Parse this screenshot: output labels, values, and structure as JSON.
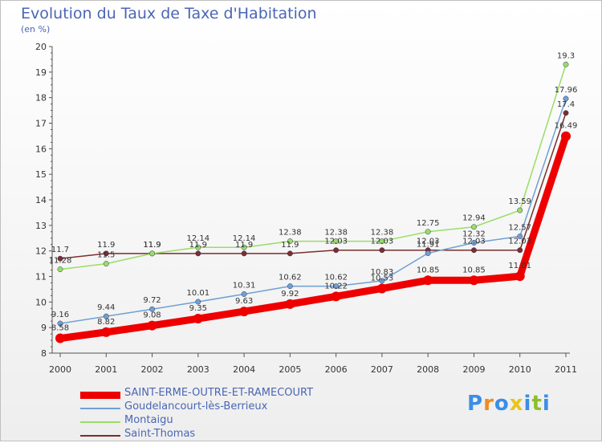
{
  "title": "Evolution du Taux de Taxe d'Habitation",
  "subtitle": "(en %)",
  "logo": {
    "text": "Proxiti",
    "colors": [
      "#3a8ee6",
      "#f28a1e",
      "#3a8ee6",
      "#e8c51a",
      "#3a8ee6",
      "#8bbf2a",
      "#3a8ee6"
    ]
  },
  "chart_data": {
    "type": "line",
    "title": "Evolution du Taux de Taxe d'Habitation",
    "ylabel": "(en %)",
    "xlabel": "",
    "x": [
      "2000",
      "2001",
      "2002",
      "2003",
      "2004",
      "2005",
      "2006",
      "2007",
      "2008",
      "2009",
      "2010",
      "2011"
    ],
    "ylim": [
      8,
      20
    ],
    "yticks": [
      8,
      9,
      10,
      11,
      12,
      13,
      14,
      15,
      16,
      17,
      18,
      19,
      20
    ],
    "grid": false,
    "legend_position": "bottom-left",
    "series": [
      {
        "name": "SAINT-ERME-OUTRE-ET-RAMECOURT",
        "color": "#ee0000",
        "width": 9,
        "values": [
          8.58,
          8.82,
          9.08,
          9.35,
          9.63,
          9.92,
          10.22,
          10.53,
          10.85,
          10.85,
          11.01,
          16.49
        ],
        "labels": [
          "8.58",
          "8.82",
          "9.08",
          "9.35",
          "9.63",
          "9.92",
          "10.22",
          "10.53",
          "10.85",
          "10.85",
          "11.01",
          "16.49"
        ]
      },
      {
        "name": "Goudelancourt-lès-Berrieux",
        "color": "#6fa0d4",
        "width": 1.5,
        "values": [
          9.16,
          9.44,
          9.72,
          10.01,
          10.31,
          10.62,
          10.62,
          10.83,
          11.91,
          12.32,
          12.57,
          17.96
        ],
        "labels": [
          "9.16",
          "9.44",
          "9.72",
          "10.01",
          "10.31",
          "10.62",
          "10.62",
          "10.83",
          "11.91",
          "12.32",
          "12.57",
          "17.96"
        ]
      },
      {
        "name": "Montaigu",
        "color": "#99dd66",
        "width": 1.5,
        "values": [
          11.28,
          11.5,
          11.9,
          12.14,
          12.14,
          12.38,
          12.38,
          12.38,
          12.75,
          12.94,
          13.59,
          19.3
        ],
        "labels": [
          "11.28",
          "11.5",
          "11.9",
          "12.14",
          "12.14",
          "12.38",
          "12.38",
          "12.38",
          "12.75",
          "12.94",
          "13.59",
          "19.3"
        ]
      },
      {
        "name": "Saint-Thomas",
        "color": "#7a2e2e",
        "width": 1.5,
        "values": [
          11.7,
          11.9,
          11.9,
          11.9,
          11.9,
          11.9,
          12.03,
          12.03,
          12.03,
          12.03,
          12.03,
          17.4
        ],
        "labels": [
          "11.7",
          "11.9",
          "11.9",
          "11.9",
          "11.9",
          "11.9",
          "12.03",
          "12.03",
          "12.03",
          "12.03",
          "12.03",
          "17.4"
        ]
      }
    ]
  }
}
